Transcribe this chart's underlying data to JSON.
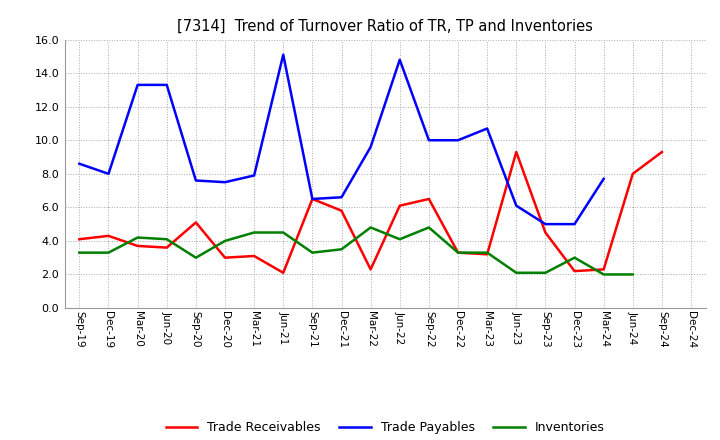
{
  "title": "[7314]  Trend of Turnover Ratio of TR, TP and Inventories",
  "x_labels": [
    "Sep-19",
    "Dec-19",
    "Mar-20",
    "Jun-20",
    "Sep-20",
    "Dec-20",
    "Mar-21",
    "Jun-21",
    "Sep-21",
    "Dec-21",
    "Mar-22",
    "Jun-22",
    "Sep-22",
    "Dec-22",
    "Mar-23",
    "Jun-23",
    "Sep-23",
    "Dec-23",
    "Mar-24",
    "Jun-24",
    "Sep-24",
    "Dec-24"
  ],
  "trade_receivables": [
    4.1,
    4.3,
    3.7,
    3.6,
    5.1,
    3.0,
    3.1,
    2.1,
    6.5,
    5.8,
    2.3,
    6.1,
    6.5,
    3.3,
    3.2,
    9.3,
    4.5,
    2.2,
    2.3,
    8.0,
    9.3,
    null
  ],
  "trade_payables": [
    8.6,
    8.0,
    13.3,
    13.3,
    7.6,
    7.5,
    7.9,
    15.1,
    6.5,
    6.6,
    9.6,
    14.8,
    10.0,
    10.0,
    10.7,
    6.1,
    5.0,
    5.0,
    7.7,
    null,
    null,
    null
  ],
  "inventories": [
    3.3,
    3.3,
    4.2,
    4.1,
    3.0,
    4.0,
    4.5,
    4.5,
    3.3,
    3.5,
    4.8,
    4.1,
    4.8,
    3.3,
    3.3,
    2.1,
    2.1,
    3.0,
    2.0,
    2.0,
    null,
    null
  ],
  "ylim": [
    0.0,
    16.0
  ],
  "yticks": [
    0.0,
    2.0,
    4.0,
    6.0,
    8.0,
    10.0,
    12.0,
    14.0,
    16.0
  ],
  "color_tr": "#ff0000",
  "color_tp": "#0000ff",
  "color_inv": "#008000",
  "legend_labels": [
    "Trade Receivables",
    "Trade Payables",
    "Inventories"
  ],
  "background_color": "#ffffff",
  "grid_color": "#aaaaaa"
}
